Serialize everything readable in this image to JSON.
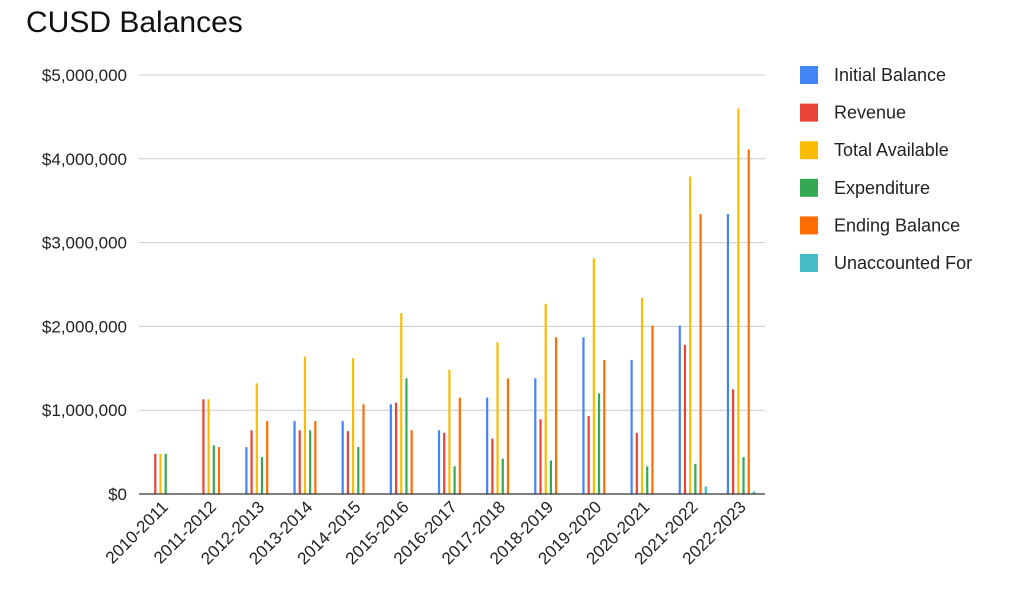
{
  "chart_data": {
    "type": "bar",
    "title": "CUSD Balances",
    "xlabel": "",
    "ylabel": "",
    "ylim": [
      0,
      5000000
    ],
    "yticks": [
      {
        "value": 0,
        "label": "$0"
      },
      {
        "value": 1000000,
        "label": "$1,000,000"
      },
      {
        "value": 2000000,
        "label": "$2,000,000"
      },
      {
        "value": 3000000,
        "label": "$3,000,000"
      },
      {
        "value": 4000000,
        "label": "$4,000,000"
      },
      {
        "value": 5000000,
        "label": "$5,000,000"
      }
    ],
    "grid": true,
    "legend_position": "right",
    "categories": [
      "2010-2011",
      "2011-2012",
      "2012-2013",
      "2013-2014",
      "2014-2015",
      "2015-2016",
      "2016-2017",
      "2017-2018",
      "2018-2019",
      "2019-2020",
      "2020-2021",
      "2021-2022",
      "2022-2023"
    ],
    "series": [
      {
        "name": "Initial Balance",
        "color": "#4285F4",
        "values": [
          0,
          0,
          560000,
          870000,
          870000,
          1070000,
          760000,
          1150000,
          1380000,
          1870000,
          1600000,
          2010000,
          3340000
        ]
      },
      {
        "name": "Revenue",
        "color": "#EA4335",
        "values": [
          480000,
          1130000,
          760000,
          760000,
          750000,
          1090000,
          730000,
          660000,
          890000,
          930000,
          730000,
          1780000,
          1250000
        ]
      },
      {
        "name": "Total Available",
        "color": "#FBBC04",
        "values": [
          480000,
          1130000,
          1320000,
          1640000,
          1620000,
          2160000,
          1480000,
          1810000,
          2270000,
          2810000,
          2340000,
          3790000,
          4600000
        ]
      },
      {
        "name": "Expenditure",
        "color": "#34A853",
        "values": [
          480000,
          580000,
          440000,
          760000,
          560000,
          1380000,
          330000,
          420000,
          400000,
          1200000,
          330000,
          360000,
          440000
        ]
      },
      {
        "name": "Ending Balance",
        "color": "#FF6D01",
        "values": [
          0,
          560000,
          870000,
          870000,
          1070000,
          760000,
          1150000,
          1380000,
          1870000,
          1600000,
          2010000,
          3340000,
          4110000
        ]
      },
      {
        "name": "Unaccounted For",
        "color": "#46BDC6",
        "values": [
          0,
          0,
          0,
          0,
          0,
          0,
          0,
          0,
          0,
          0,
          0,
          90000,
          30000
        ]
      }
    ]
  }
}
